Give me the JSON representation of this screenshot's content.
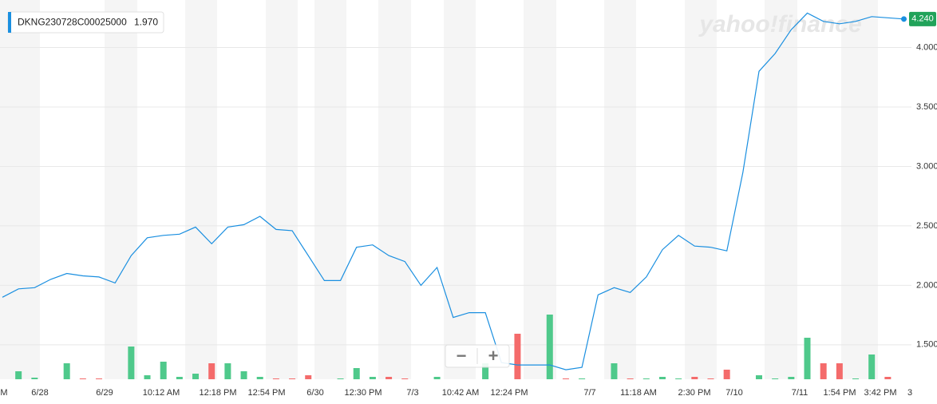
{
  "chart_data": {
    "type": "line",
    "symbol": "DKNG230728C00025000",
    "legend_value": "1.970",
    "watermark": "yahoo!finance",
    "last_price_label": "4.240",
    "zoom_out": "−",
    "zoom_in": "+",
    "series": [
      {
        "name": "DKNG230728C00025000",
        "color": "#1a8fe0",
        "values": [
          1.9,
          1.97,
          1.98,
          2.05,
          2.1,
          2.08,
          2.07,
          2.02,
          2.25,
          2.4,
          2.42,
          2.43,
          2.49,
          2.35,
          2.49,
          2.51,
          2.58,
          2.47,
          2.46,
          2.25,
          2.04,
          2.04,
          2.32,
          2.34,
          2.25,
          2.2,
          2.0,
          2.15,
          1.73,
          1.77,
          1.77,
          1.35,
          1.33,
          1.33,
          1.33,
          1.29,
          1.31,
          1.92,
          1.98,
          1.94,
          2.07,
          2.3,
          2.42,
          2.33,
          2.32,
          2.29,
          2.95,
          3.8,
          3.95,
          4.15,
          4.29,
          4.22,
          4.2,
          4.22,
          4.26,
          4.25,
          4.24
        ]
      }
    ],
    "volume_series": [
      {
        "color": "#4fc98b",
        "values": [
          null,
          10,
          2,
          null,
          20,
          null,
          null,
          null,
          41,
          5,
          22,
          3,
          7,
          null,
          20,
          10,
          3,
          null,
          null,
          null,
          null,
          1,
          14,
          3,
          null,
          null,
          null,
          3,
          null,
          null,
          20,
          null,
          null,
          null,
          81,
          null,
          1,
          null,
          20,
          null,
          1,
          3,
          1,
          null,
          null,
          null,
          null,
          5,
          1,
          3,
          52,
          null,
          null,
          1,
          31,
          null,
          null
        ]
      },
      {
        "color": "#f46b6b",
        "values": [
          null,
          null,
          null,
          null,
          null,
          1,
          1,
          null,
          null,
          null,
          null,
          null,
          null,
          20,
          null,
          null,
          null,
          1,
          1,
          5,
          null,
          null,
          null,
          null,
          3,
          1,
          null,
          null,
          null,
          null,
          null,
          null,
          57,
          null,
          null,
          1,
          null,
          null,
          null,
          1,
          null,
          null,
          null,
          3,
          1,
          12,
          null,
          null,
          null,
          null,
          null,
          20,
          20,
          null,
          null,
          3,
          null
        ]
      }
    ],
    "x_labels": [
      "M",
      "6/28",
      "6/29",
      "10:12 AM",
      "12:18 PM",
      "12:54 PM",
      "6/30",
      "12:30 PM",
      "7/3",
      "10:42 AM",
      "12:24 PM",
      "7/7",
      "11:18 AM",
      "2:30 PM",
      "7/10",
      "7/11",
      "1:54 PM",
      "3:42 PM",
      "3"
    ],
    "ylim": [
      1.21,
      4.4
    ],
    "yticks": [
      {
        "value": 1.5,
        "label": "1.500"
      },
      {
        "value": 2.0,
        "label": "2.000"
      },
      {
        "value": 2.5,
        "label": "2.500"
      },
      {
        "value": 3.0,
        "label": "3.000"
      },
      {
        "value": 3.5,
        "label": "3.500"
      },
      {
        "value": 4.0,
        "label": "4.000"
      }
    ],
    "grid": true
  }
}
